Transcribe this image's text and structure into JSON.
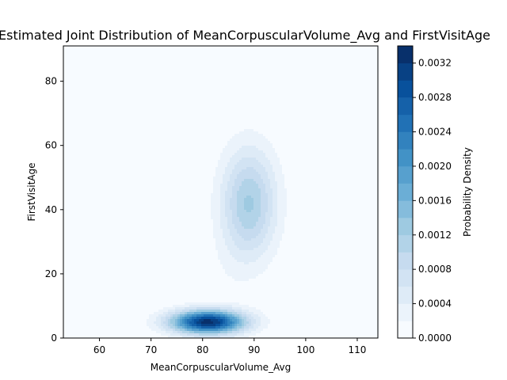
{
  "chart_data": {
    "type": "contourf",
    "title": "Estimated Joint Distribution of MeanCorpuscularVolume_Avg and FirstVisitAge",
    "xlabel": "MeanCorpuscularVolume_Avg",
    "ylabel": "FirstVisitAge",
    "colorbar_label": "Probability Density",
    "xlim": [
      53,
      114
    ],
    "ylim": [
      0,
      91
    ],
    "x_ticks": [
      60,
      70,
      80,
      90,
      100,
      110
    ],
    "y_ticks": [
      0,
      20,
      40,
      60,
      80
    ],
    "colorbar_range": [
      0,
      0.0034
    ],
    "colorbar_ticks": [
      "0.0000",
      "0.0004",
      "0.0008",
      "0.0012",
      "0.0016",
      "0.0020",
      "0.0024",
      "0.0028",
      "0.0032"
    ],
    "colormap": "Blues",
    "levels": [
      0.0,
      0.0002,
      0.0004,
      0.0006,
      0.0008,
      0.001,
      0.0012,
      0.0014,
      0.0016,
      0.0018,
      0.002,
      0.0022,
      0.0024,
      0.0026,
      0.0028,
      0.003,
      0.0032,
      0.0034
    ],
    "density_modes": [
      {
        "x": 81,
        "y": 5,
        "sx": 5.0,
        "sy": 2.6,
        "peak": 0.0033
      },
      {
        "x": 89,
        "y": 42,
        "sx": 3.8,
        "sy": 12,
        "peak": 0.00123
      },
      {
        "x": 85,
        "y": 22,
        "sx": 3.0,
        "sy": 9,
        "peak": 8e-05
      }
    ]
  }
}
